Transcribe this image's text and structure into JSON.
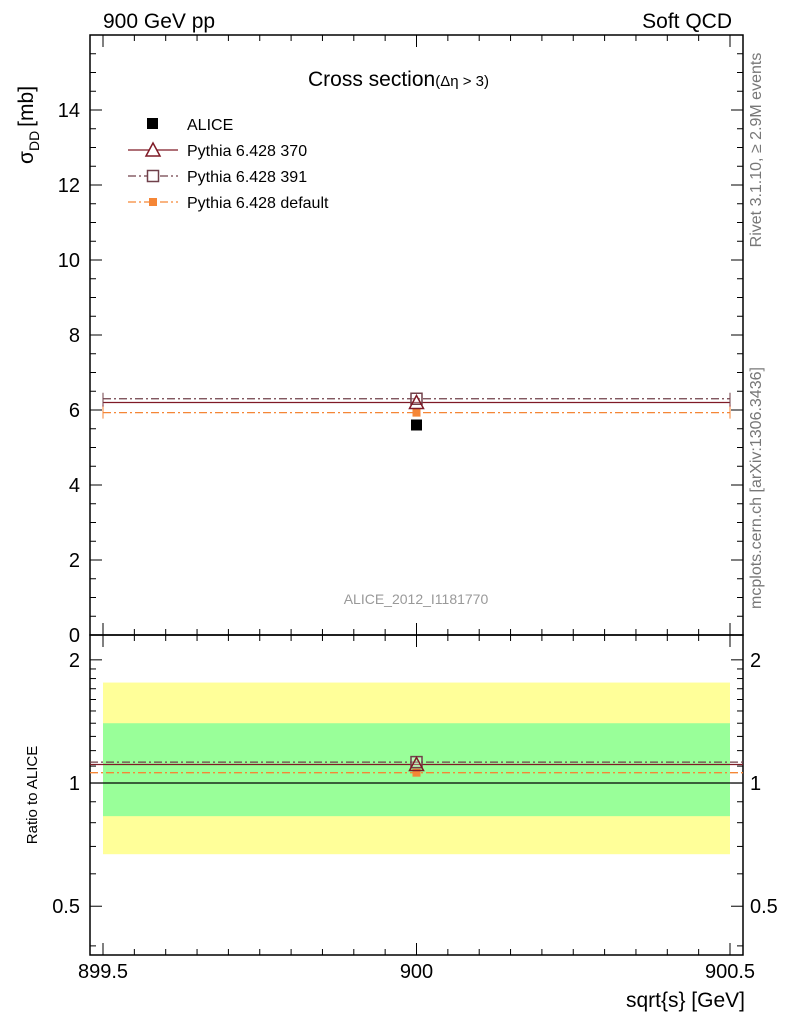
{
  "header": {
    "left": "900 GeV pp",
    "right": "Soft QCD"
  },
  "side_text": {
    "top": "Rivet 3.1.10, ≥ 2.9M events",
    "bottom": "mcplots.cern.ch [arXiv:1306.3436]"
  },
  "chart_data": [
    {
      "type": "scatter",
      "title": "Cross section",
      "title_suffix": "(Δη > 3)",
      "ylabel_main": "σ",
      "ylabel_sub": "DD",
      "ylabel_unit": "[mb]",
      "watermark": "ALICE_2012_I1181770",
      "xlim": [
        899.5,
        900.5
      ],
      "ylim": [
        0,
        16
      ],
      "yticks": [
        "0",
        "2",
        "4",
        "6",
        "8",
        "10",
        "12",
        "14"
      ],
      "legend_position": "top-left",
      "legend": [
        "ALICE",
        "Pythia 6.428 370",
        "Pythia 6.428 391",
        "Pythia 6.428 default"
      ],
      "series": [
        {
          "name": "ALICE",
          "color": "#000000",
          "marker": "filled-square",
          "x": [
            900
          ],
          "y": [
            5.6
          ]
        },
        {
          "name": "Pythia 6.428 370",
          "color": "#7f1a26",
          "marker": "open-triangle",
          "line": "solid",
          "x": [
            900
          ],
          "y": [
            6.2
          ]
        },
        {
          "name": "Pythia 6.428 391",
          "color": "#70404a",
          "marker": "open-square",
          "line": "dash-dot",
          "x": [
            900
          ],
          "y": [
            6.3
          ]
        },
        {
          "name": "Pythia 6.428 default",
          "color": "#f58636",
          "marker": "filled-square",
          "line": "dash-dot",
          "x": [
            900
          ],
          "y": [
            5.93
          ]
        }
      ]
    },
    {
      "type": "scatter",
      "ylabel": "Ratio to ALICE",
      "xlabel": "sqrt{s} [GeV]",
      "log_y": true,
      "ylim": [
        0.38,
        2.3
      ],
      "xticks": [
        "899.5",
        "900",
        "900.5"
      ],
      "yticks": [
        "0.5",
        "1",
        "2"
      ],
      "bands": [
        {
          "color": "#ffff99",
          "range": [
            0.67,
            1.76
          ]
        },
        {
          "color": "#99ff99",
          "range": [
            0.83,
            1.4
          ]
        }
      ],
      "series": [
        {
          "name": "Pythia 6.428 370",
          "color": "#7f1a26",
          "x": [
            900
          ],
          "y": [
            1.11
          ]
        },
        {
          "name": "Pythia 6.428 391",
          "color": "#70404a",
          "x": [
            900
          ],
          "y": [
            1.125
          ]
        },
        {
          "name": "Pythia 6.428 default",
          "color": "#f58636",
          "x": [
            900
          ],
          "y": [
            1.06
          ]
        }
      ]
    }
  ]
}
